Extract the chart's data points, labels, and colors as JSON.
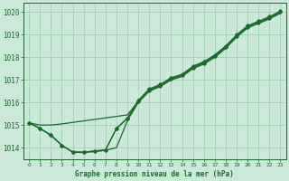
{
  "title": "Graphe pression niveau de la mer (hPa)",
  "background_color": "#cce8d8",
  "grid_color": "#99ccaa",
  "line_color": "#1a6b2a",
  "marker_color": "#1a6b2a",
  "xlim": [
    -0.5,
    23.5
  ],
  "ylim": [
    1013.5,
    1020.4
  ],
  "yticks": [
    1014,
    1015,
    1016,
    1017,
    1018,
    1019,
    1020
  ],
  "xticks": [
    0,
    1,
    2,
    3,
    4,
    5,
    6,
    7,
    8,
    9,
    10,
    11,
    12,
    13,
    14,
    15,
    16,
    17,
    18,
    19,
    20,
    21,
    22,
    23
  ],
  "series1_x": [
    0,
    1,
    2,
    3,
    4,
    5,
    6,
    7,
    8,
    9,
    10,
    11,
    12,
    13,
    14,
    15,
    16,
    17,
    18,
    19,
    20,
    21,
    22,
    23
  ],
  "series1_y": [
    1015.1,
    1014.85,
    1014.55,
    1014.1,
    1013.8,
    1013.8,
    1013.85,
    1013.9,
    1014.85,
    1015.3,
    1016.1,
    1016.6,
    1016.8,
    1017.1,
    1017.25,
    1017.6,
    1017.8,
    1018.1,
    1018.5,
    1019.0,
    1019.4,
    1019.6,
    1019.8,
    1020.05
  ],
  "series2_x": [
    0,
    1,
    2,
    3,
    4,
    5,
    6,
    7,
    8,
    9,
    10,
    11,
    12,
    13,
    14,
    15,
    16,
    17,
    18,
    19,
    20,
    21,
    22,
    23
  ],
  "series2_y": [
    1015.1,
    1014.85,
    1014.55,
    1014.1,
    1013.8,
    1013.8,
    1013.85,
    1013.9,
    1014.85,
    1015.3,
    1016.05,
    1016.55,
    1016.75,
    1017.05,
    1017.2,
    1017.55,
    1017.75,
    1018.05,
    1018.45,
    1018.95,
    1019.35,
    1019.55,
    1019.75,
    1020.0
  ],
  "series3_x": [
    0,
    1,
    2,
    3,
    9,
    10,
    11,
    12,
    13,
    14,
    15,
    16,
    17,
    18,
    19,
    20,
    21,
    22,
    23
  ],
  "series3_y": [
    1015.1,
    1015.0,
    1015.0,
    1015.05,
    1015.45,
    1016.05,
    1016.55,
    1016.75,
    1017.05,
    1017.2,
    1017.6,
    1017.8,
    1018.1,
    1018.5,
    1018.95,
    1019.35,
    1019.55,
    1019.75,
    1020.0
  ],
  "series4_x": [
    0,
    1,
    2,
    3,
    4,
    5,
    6,
    7,
    8,
    9,
    10,
    11,
    12,
    13,
    14,
    15,
    16,
    17,
    18,
    19,
    20,
    21,
    22,
    23
  ],
  "series4_y": [
    1015.1,
    1014.85,
    1014.55,
    1014.1,
    1013.8,
    1013.78,
    1013.82,
    1013.88,
    1014.0,
    1015.2,
    1016.0,
    1016.5,
    1016.7,
    1017.0,
    1017.15,
    1017.5,
    1017.7,
    1018.0,
    1018.4,
    1018.9,
    1019.3,
    1019.5,
    1019.7,
    1019.95
  ]
}
